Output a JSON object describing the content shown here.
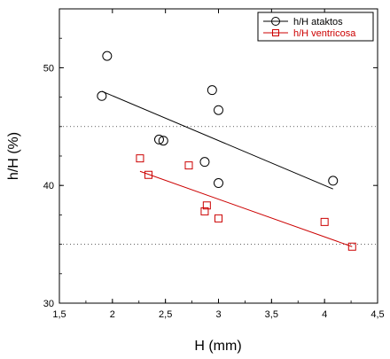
{
  "chart_data": {
    "type": "scatter",
    "xlabel": "H (mm)",
    "ylabel": "h/H (%)",
    "xlim": [
      1.5,
      4.5
    ],
    "ylim": [
      30,
      55
    ],
    "x_ticks": [
      1.5,
      2,
      2.5,
      3,
      3.5,
      4,
      4.5
    ],
    "x_tick_labels": [
      "1,5",
      "2",
      "2,5",
      "3",
      "3,5",
      "4",
      "4,5"
    ],
    "y_ticks": [
      30,
      40,
      50
    ],
    "y_tick_labels": [
      "30",
      "40",
      "50"
    ],
    "y_minor_gridlines": [
      35,
      45
    ],
    "grid": "dashed horizontal at 35 and 45",
    "legend_position": "top-right",
    "series": [
      {
        "name": "h/H ataktos",
        "marker": "circle",
        "color": "#000000",
        "points": [
          {
            "x": 1.9,
            "y": 47.6
          },
          {
            "x": 1.95,
            "y": 51.0
          },
          {
            "x": 2.44,
            "y": 43.9
          },
          {
            "x": 2.48,
            "y": 43.8
          },
          {
            "x": 2.87,
            "y": 42.0
          },
          {
            "x": 2.94,
            "y": 48.1
          },
          {
            "x": 3.0,
            "y": 46.4
          },
          {
            "x": 3.0,
            "y": 40.2
          },
          {
            "x": 4.08,
            "y": 40.4
          }
        ],
        "trend": {
          "x": [
            1.9,
            4.08
          ],
          "y": [
            48.0,
            39.7
          ]
        }
      },
      {
        "name": "h/H ventricosa",
        "marker": "square",
        "color": "#cc0000",
        "points": [
          {
            "x": 2.26,
            "y": 42.3
          },
          {
            "x": 2.34,
            "y": 40.9
          },
          {
            "x": 2.72,
            "y": 41.7
          },
          {
            "x": 2.87,
            "y": 37.8
          },
          {
            "x": 2.89,
            "y": 38.3
          },
          {
            "x": 3.0,
            "y": 37.2
          },
          {
            "x": 4.0,
            "y": 36.9
          },
          {
            "x": 4.26,
            "y": 34.8
          }
        ],
        "trend": {
          "x": [
            2.26,
            4.26
          ],
          "y": [
            41.2,
            34.8
          ]
        }
      }
    ]
  }
}
